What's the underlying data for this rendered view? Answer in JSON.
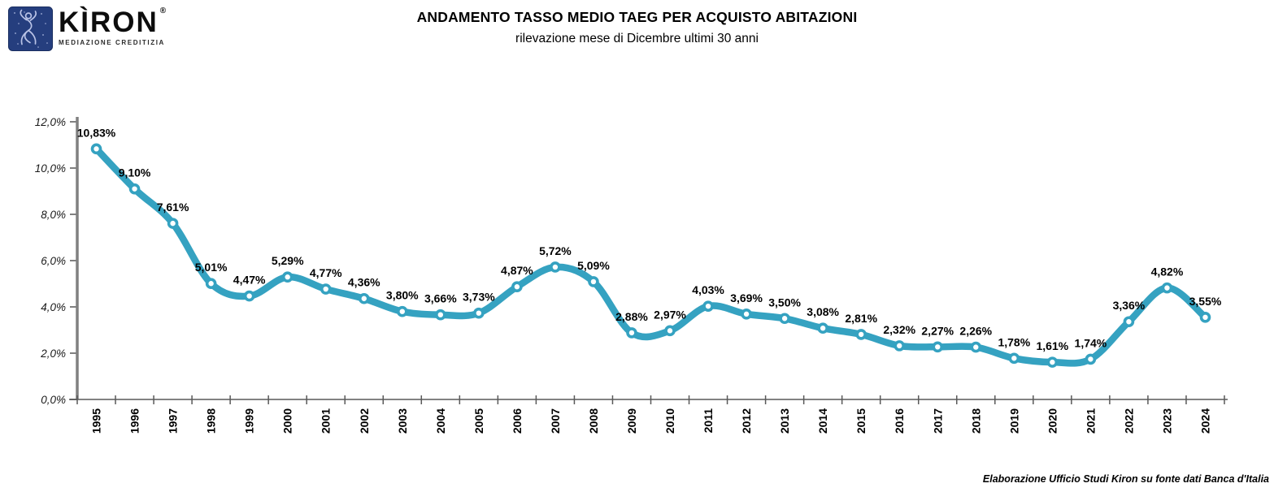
{
  "header": {
    "logo": {
      "brand": "KÌRON",
      "registered_mark": "®",
      "tagline": "MEDIAZIONE CREDITIZIA"
    }
  },
  "chart_data": {
    "type": "line",
    "title": "ANDAMENTO TASSO MEDIO TAEG PER ACQUISTO ABITAZIONI",
    "subtitle": "rilevazione mese di Dicembre ultimi 30 anni",
    "categories": [
      "1995",
      "1996",
      "1997",
      "1998",
      "1999",
      "2000",
      "2001",
      "2002",
      "2003",
      "2004",
      "2005",
      "2006",
      "2007",
      "2008",
      "2009",
      "2010",
      "2011",
      "2012",
      "2013",
      "2014",
      "2015",
      "2016",
      "2017",
      "2018",
      "2019",
      "2020",
      "2021",
      "2022",
      "2023",
      "2024"
    ],
    "values": [
      10.83,
      9.1,
      7.61,
      5.01,
      4.47,
      5.29,
      4.77,
      4.36,
      3.8,
      3.66,
      3.73,
      4.87,
      5.72,
      5.09,
      2.88,
      2.97,
      4.03,
      3.69,
      3.5,
      3.08,
      2.81,
      2.32,
      2.27,
      2.26,
      1.78,
      1.61,
      1.74,
      3.36,
      4.82,
      3.55
    ],
    "value_labels": [
      "10,83%",
      "9,10%",
      "7,61%",
      "5,01%",
      "4,47%",
      "5,29%",
      "4,77%",
      "4,36%",
      "3,80%",
      "3,66%",
      "3,73%",
      "4,87%",
      "5,72%",
      "5,09%",
      "2,88%",
      "2,97%",
      "4,03%",
      "3,69%",
      "3,50%",
      "3,08%",
      "2,81%",
      "2,32%",
      "2,27%",
      "2,26%",
      "1,78%",
      "1,61%",
      "1,74%",
      "3,36%",
      "4,82%",
      "3,55%"
    ],
    "y_ticks": [
      "0,0%",
      "2,0%",
      "4,0%",
      "6,0%",
      "8,0%",
      "10,0%",
      "12,0%"
    ],
    "ylim": [
      0,
      12
    ],
    "grid": false,
    "legend": false,
    "smoothed_line": true,
    "line_color": "#35a2c1",
    "marker_fill": "#ffffff",
    "colors": {
      "y_axis": "#808080",
      "x_axis": "#595959",
      "label_text": "#000000",
      "logo_navy": "#253e7e"
    }
  },
  "footer": {
    "credit": "Elaborazione Ufficio Studi Kiron su fonte dati Banca d'Italia"
  }
}
